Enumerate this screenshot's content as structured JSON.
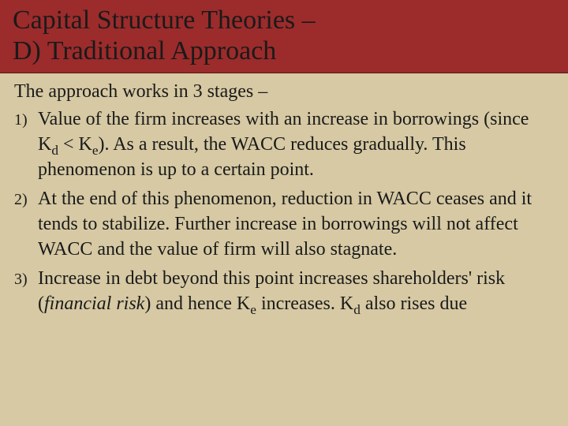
{
  "colors": {
    "header_bg": "#9c2b2b",
    "body_bg": "#d6c9a3",
    "text": "#1a1a1a"
  },
  "typography": {
    "family": "Garamond / Times-like serif",
    "title_fontsize": 34,
    "body_fontsize": 24,
    "marker_fontsize": 20
  },
  "title": {
    "line1": "Capital Structure Theories –",
    "line2": "D) Traditional Approach"
  },
  "intro": "The approach works in 3 stages –",
  "items": [
    {
      "marker": "1)",
      "html": "Value of the firm increases with an increase in borrowings (since K<span class=\"sub\">d</span> &lt; K<span class=\"sub\">e</span>). As a result, the WACC reduces gradually. This phenomenon is up to a certain point."
    },
    {
      "marker": "2)",
      "html": "At the end of this phenomenon, reduction in WACC ceases and it tends to stabilize. Further increase in borrowings will not affect WACC and the value of firm will also stagnate."
    },
    {
      "marker": "3)",
      "html": "Increase in debt beyond this point increases shareholders' risk (<span class=\"italic\">financial risk</span>) and hence K<span class=\"sub\">e</span> increases. K<span class=\"sub\">d</span> also rises due"
    }
  ]
}
